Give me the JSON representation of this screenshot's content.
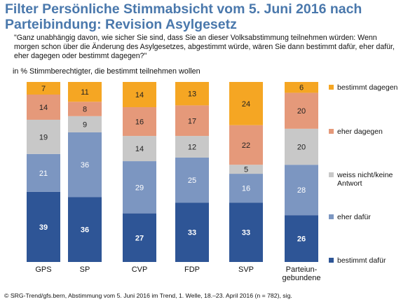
{
  "header": {
    "title": "Filter Persönliche Stimmabsicht vom 5. Juni 2016 nach Parteibindung: Revision Asylgesetz",
    "question": "\"Ganz unabhängig davon, wie sicher Sie sind, dass Sie an dieser Volksabstimmung teilnehmen würden: Wenn morgen schon über die Änderung des Asylgesetzes, abgestimmt würde, wären Sie dann bestimmt dafür, eher dafür, eher dagegen oder bestimmt dagegen?\"",
    "subtitle": "in % Stimmberechtigter, die bestimmt teilnehmen wollen"
  },
  "footer": {
    "source": "© SRG-Trend/gfs.bern, Abstimmung vom 5. Juni 2016 im Trend, 1. Welle, 18.–23. April 2016 (n = 782), sig."
  },
  "colors": {
    "title": "#4a78ac",
    "bestimmt_dafuer": "#2e5596",
    "eher_dafuer": "#7c96c1",
    "weiss_nicht": "#c8c8c8",
    "eher_dagegen": "#e5997a",
    "bestimmt_dagegen": "#f5a623"
  },
  "chart_data": {
    "type": "bar",
    "stacked": true,
    "categories": [
      "GPS",
      "SP",
      "CVP",
      "FDP",
      "SVP",
      [
        "Parteiun-",
        "gebundene"
      ]
    ],
    "series": [
      {
        "name": "bestimmt dafür",
        "values": [
          39,
          36,
          27,
          33,
          33,
          26
        ],
        "color": "#2e5596",
        "label_color": "#ffffff"
      },
      {
        "name": "eher dafür",
        "values": [
          21,
          36,
          29,
          25,
          16,
          28
        ],
        "color": "#7c96c1",
        "label_color": "#ffffff"
      },
      {
        "name": [
          "weiss nicht/keine",
          "Antwort"
        ],
        "values": [
          19,
          9,
          14,
          12,
          5,
          20
        ],
        "color": "#c8c8c8",
        "label_color": "#222222"
      },
      {
        "name": "eher dagegen",
        "values": [
          14,
          8,
          16,
          17,
          22,
          20
        ],
        "color": "#e5997a",
        "label_color": "#222222"
      },
      {
        "name": "bestimmt dagegen",
        "values": [
          7,
          11,
          14,
          13,
          24,
          6
        ],
        "color": "#f5a623",
        "label_color": "#222222"
      }
    ],
    "ylim": [
      0,
      100
    ],
    "legend_position": "right"
  }
}
